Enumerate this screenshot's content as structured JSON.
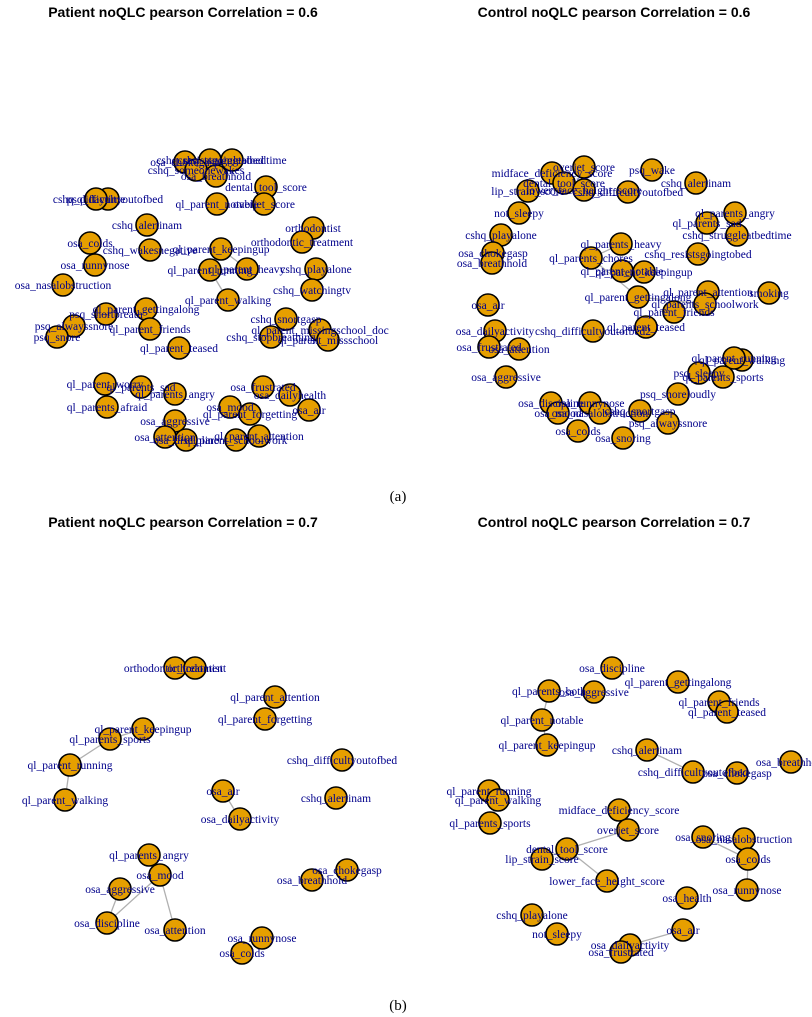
{
  "captions": [
    "(a)",
    "(b)"
  ],
  "panels": [
    {
      "title": "Patient noQLC  pearson  Correlation =  0.6",
      "nodes": [
        {
          "label": "osa_chokegasp"
        },
        {
          "label": "cshq_resistsgoingtobed"
        },
        {
          "label": "cshq_struggleatbedtime"
        },
        {
          "label": "cshq_someonewakes"
        },
        {
          "label": "osa_breathhold"
        },
        {
          "label": "cshq_difficultyoutofbed"
        },
        {
          "label": "psq_daytime"
        },
        {
          "label": "dental_tool_score"
        },
        {
          "label": "overjet_score"
        },
        {
          "label": "ql_parent_notable"
        },
        {
          "label": "cshq_alertinam"
        },
        {
          "label": "orthodontist"
        },
        {
          "label": "orthodontic_treatment"
        },
        {
          "label": "osa_colds"
        },
        {
          "label": "ql_parent_keepingup"
        },
        {
          "label": "cshq_wakesnegative"
        },
        {
          "label": "ql_parent_heavy"
        },
        {
          "label": "ql_parent_running"
        },
        {
          "label": "cshq_playalone"
        },
        {
          "label": "osa_runnynose"
        },
        {
          "label": "cshq_watchingtv"
        },
        {
          "label": "osa_nasalobstruction"
        },
        {
          "label": "ql_parent_walking"
        },
        {
          "label": "ql_parent_gettingalong"
        },
        {
          "label": "psq_shortbreath"
        },
        {
          "label": "psq_alwayssnore"
        },
        {
          "label": "ql_parent_friends"
        },
        {
          "label": "cshq_snortgasp"
        },
        {
          "label": "ql_parent_missingschool_doc"
        },
        {
          "label": "psq_snore"
        },
        {
          "label": "cshq_stopbreathing"
        },
        {
          "label": "ql_parent_missschool"
        },
        {
          "label": "ql_parent_teased"
        },
        {
          "label": "ql_parent_worry"
        },
        {
          "label": "ql_parents_sad"
        },
        {
          "label": "osa_frustrated"
        },
        {
          "label": "ql_parents_angry"
        },
        {
          "label": "osa_dailyhealth"
        },
        {
          "label": "ql_parents_afraid"
        },
        {
          "label": "osa_mood"
        },
        {
          "label": "ql_parent_forgetting"
        },
        {
          "label": "osa_air"
        },
        {
          "label": "osa_aggressive"
        },
        {
          "label": "ql_parent_attention"
        },
        {
          "label": "osa_attention"
        },
        {
          "label": "osa_discipline"
        },
        {
          "label": "ql_parent_schoolwork"
        }
      ]
    },
    {
      "title": "Control noQLC  pearson  Correlation =  0.6",
      "nodes": [
        {
          "label": "overjet_score"
        },
        {
          "label": "psq_wake"
        },
        {
          "label": "midface_deficiency_score"
        },
        {
          "label": "dental_tool_score"
        },
        {
          "label": "cshq_alertinam"
        },
        {
          "label": "lip_strain_score"
        },
        {
          "label": "lower_face_height_score"
        },
        {
          "label": "cshq_difficultyoutofbed"
        },
        {
          "label": "not_sleepy"
        },
        {
          "label": "ql_parents_angry"
        },
        {
          "label": "ql_parents_sad"
        },
        {
          "label": "cshq_struggleatbedtime"
        },
        {
          "label": "cshq_playalone"
        },
        {
          "label": "ql_parents_heavy"
        },
        {
          "label": "osa_chokegasp"
        },
        {
          "label": "cshq_resistsgoingtobed"
        },
        {
          "label": "ql_parents_chores"
        },
        {
          "label": "osa_breathhold"
        },
        {
          "label": "ql_parent_notable"
        },
        {
          "label": "ql_parent_keepingup"
        },
        {
          "label": "ql_parent_gettingalong"
        },
        {
          "label": "ql_parent_attention"
        },
        {
          "label": "smoking"
        },
        {
          "label": "ql_parents_schoolwork"
        },
        {
          "label": "osa_air"
        },
        {
          "label": "ql_parent_friends"
        },
        {
          "label": "osa_dailyactivity"
        },
        {
          "label": "cshq_difficultyoutofbed2"
        },
        {
          "label": "ql_parent_teased"
        },
        {
          "label": "osa_frustrated"
        },
        {
          "label": "osa_attention"
        },
        {
          "label": "ql_parent_walking"
        },
        {
          "label": "ql_parent_running"
        },
        {
          "label": "psq_sleepy"
        },
        {
          "label": "ql_parents_sports"
        },
        {
          "label": "osa_aggressive"
        },
        {
          "label": "psq_snoreloudly"
        },
        {
          "label": "osa_discipline"
        },
        {
          "label": "osa_runnynose"
        },
        {
          "label": "cshq_snortgasp"
        },
        {
          "label": "osa_mood"
        },
        {
          "label": "osa_nasalobstruction"
        },
        {
          "label": "psq_alwayssnore"
        },
        {
          "label": "osa_colds"
        },
        {
          "label": "osa_snoring"
        }
      ]
    },
    {
      "title": "Patient noQLC  pearson  Correlation =  0.7",
      "nodes": [
        {
          "label": "orthodontic_treatment"
        },
        {
          "label": "orthodontist"
        },
        {
          "label": "ql_parent_attention"
        },
        {
          "label": "ql_parent_forgetting"
        },
        {
          "label": "ql_parent_keepingup"
        },
        {
          "label": "ql_parents_sports"
        },
        {
          "label": "ql_parent_running"
        },
        {
          "label": "cshq_difficultyoutofbed"
        },
        {
          "label": "ql_parent_walking"
        },
        {
          "label": "cshq_alertinam"
        },
        {
          "label": "osa_air"
        },
        {
          "label": "osa_dailyactivity"
        },
        {
          "label": "ql_parents_angry"
        },
        {
          "label": "osa_aggressive"
        },
        {
          "label": "osa_mood"
        },
        {
          "label": "osa_chokegasp"
        },
        {
          "label": "osa_breathhold"
        },
        {
          "label": "osa_discipline"
        },
        {
          "label": "osa_attention"
        },
        {
          "label": "osa_runnynose"
        },
        {
          "label": "osa_colds"
        }
      ]
    },
    {
      "title": "Control noQLC  pearson  Correlation =  0.7",
      "nodes": [
        {
          "label": "osa_discipline"
        },
        {
          "label": "ql_parent_gettingalong"
        },
        {
          "label": "ql_parents_both"
        },
        {
          "label": "osa_aggressive"
        },
        {
          "label": "ql_parent_friends"
        },
        {
          "label": "ql_parent_notable"
        },
        {
          "label": "ql_parent_teased"
        },
        {
          "label": "ql_parent_keepingup"
        },
        {
          "label": "cshq_alertinam"
        },
        {
          "label": "osa_breathhold"
        },
        {
          "label": "cshq_difficultyoutofbed"
        },
        {
          "label": "osa_chokegasp"
        },
        {
          "label": "ql_parent_running"
        },
        {
          "label": "ql_parent_walking"
        },
        {
          "label": "midface_deficiency_score"
        },
        {
          "label": "ql_parents_sports"
        },
        {
          "label": "overjet_score"
        },
        {
          "label": "osa_snoring"
        },
        {
          "label": "osa_nasalobstruction"
        },
        {
          "label": "dental_tool_score"
        },
        {
          "label": "lip_strain_score"
        },
        {
          "label": "osa_colds"
        },
        {
          "label": "lower_face_height_score"
        },
        {
          "label": "osa_runnynose"
        },
        {
          "label": "osa_health"
        },
        {
          "label": "cshq_playalone"
        },
        {
          "label": "osa_air"
        },
        {
          "label": "not_sleepy"
        },
        {
          "label": "osa_dailyactivity"
        },
        {
          "label": "osa_frustrated"
        }
      ]
    }
  ]
}
